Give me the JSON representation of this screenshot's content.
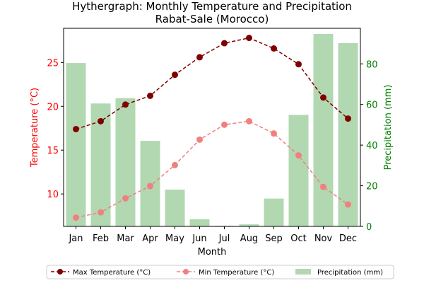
{
  "chart_data": {
    "type": "bar+line",
    "title": "Hythergraph: Monthly Temperature and Precipitation",
    "subtitle": "Rabat-Sale (Morocco)",
    "xlabel": "Month",
    "ylabel_left": "Temperature (°C)",
    "ylabel_right": "Precipitation (mm)",
    "categories": [
      "Jan",
      "Feb",
      "Mar",
      "Apr",
      "May",
      "Jun",
      "Jul",
      "Aug",
      "Sep",
      "Oct",
      "Nov",
      "Dec"
    ],
    "ylim_left": [
      6.3,
      28.9
    ],
    "ylim_right": [
      0,
      97.5
    ],
    "yticks_left": [
      10,
      15,
      20,
      25
    ],
    "yticks_right": [
      0,
      20,
      40,
      60,
      80
    ],
    "grid": false,
    "legend_position": "bottom",
    "series": [
      {
        "name": "Max Temperature (°C)",
        "kind": "line",
        "axis": "left",
        "color": "#800000",
        "values": [
          17.4,
          18.3,
          20.2,
          21.2,
          23.6,
          25.6,
          27.2,
          27.8,
          26.6,
          24.8,
          21.0,
          18.6
        ]
      },
      {
        "name": "Min Temperature (°C)",
        "kind": "line",
        "axis": "left",
        "color": "#f08080",
        "values": [
          7.3,
          7.9,
          9.5,
          10.9,
          13.3,
          16.2,
          17.9,
          18.3,
          16.9,
          14.4,
          10.8,
          8.8
        ]
      },
      {
        "name": "Precipitation (mm)",
        "kind": "bar",
        "axis": "right",
        "color": "#b2d8b2",
        "values": [
          80.4,
          60.5,
          63.1,
          42.1,
          18.1,
          3.5,
          0.3,
          1.0,
          13.7,
          54.9,
          94.7,
          90.2
        ]
      }
    ],
    "colors": {
      "left_axis": "#ff0000",
      "right_axis": "#008000"
    }
  }
}
